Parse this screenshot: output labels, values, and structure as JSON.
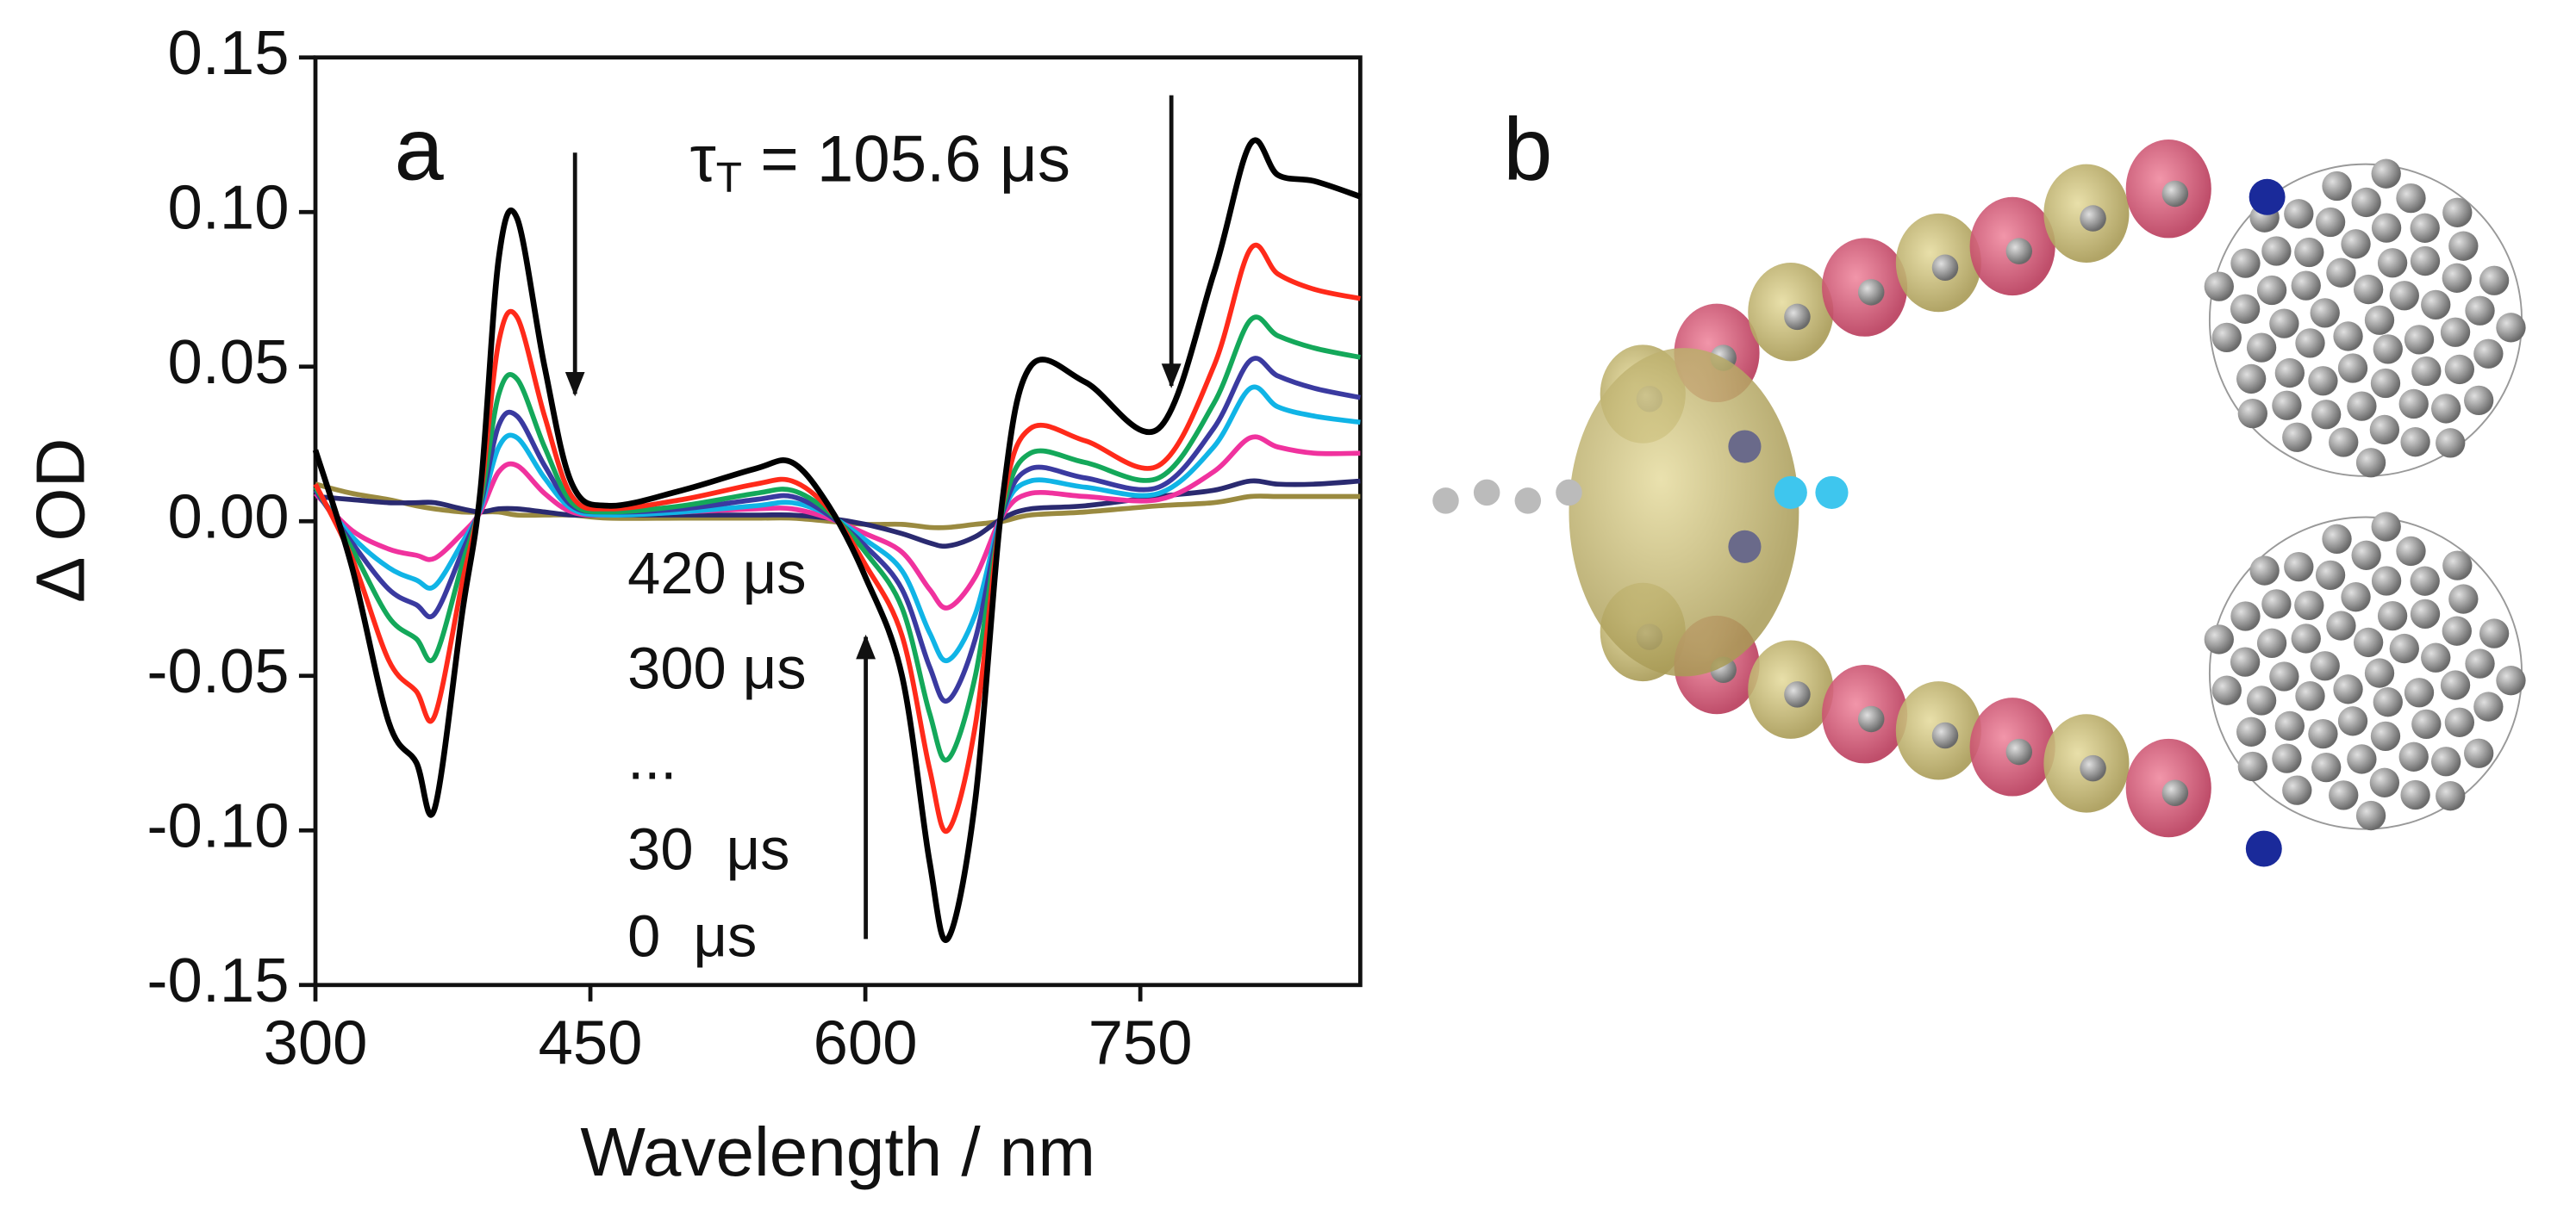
{
  "chart_data": {
    "type": "line",
    "panel_label": "a",
    "lifetime_label": [
      "τ",
      "T",
      " = 105.6 μs"
    ],
    "time_labels": [
      "420 μs",
      "300 μs",
      "...",
      "30  μs",
      "0  μs"
    ],
    "x_label": "Wavelength / nm",
    "y_label": "Δ OD",
    "xlim": [
      300,
      870
    ],
    "xticks": [
      300,
      450,
      600,
      750
    ],
    "ylim": [
      -0.15,
      0.15
    ],
    "yticks": [
      0.15,
      {
        "value": 0.1,
        "label": "0.10"
      },
      0.05,
      {
        "value": 0,
        "label": "0.00"
      },
      -0.05,
      {
        "value": -0.1,
        "label": "-0.10"
      },
      -0.15
    ],
    "grid": false,
    "x": [
      300,
      320,
      340,
      355,
      365,
      380,
      390,
      400,
      410,
      425,
      440,
      460,
      500,
      540,
      560,
      580,
      600,
      620,
      635,
      645,
      660,
      675,
      690,
      720,
      760,
      790,
      810,
      825,
      845,
      870
    ],
    "series": [
      {
        "color": "#000000",
        "values": [
          0.023,
          -0.015,
          -0.065,
          -0.078,
          -0.093,
          -0.03,
          0.01,
          0.085,
          0.098,
          0.05,
          0.012,
          0.005,
          0.01,
          0.017,
          0.019,
          0.005,
          -0.018,
          -0.05,
          -0.11,
          -0.135,
          -0.09,
          0.008,
          0.05,
          0.045,
          0.03,
          0.08,
          0.122,
          0.112,
          0.11,
          0.105
        ]
      },
      {
        "color": "#ff2a1a",
        "values": [
          0.012,
          -0.012,
          -0.045,
          -0.055,
          -0.063,
          -0.02,
          0.008,
          0.058,
          0.066,
          0.034,
          0.008,
          0.004,
          0.007,
          0.012,
          0.013,
          0.004,
          -0.014,
          -0.037,
          -0.08,
          -0.1,
          -0.066,
          0.006,
          0.03,
          0.026,
          0.018,
          0.05,
          0.088,
          0.08,
          0.075,
          0.072
        ]
      },
      {
        "color": "#14a85a",
        "values": [
          0.011,
          -0.009,
          -0.031,
          -0.038,
          -0.044,
          -0.014,
          0.006,
          0.041,
          0.046,
          0.024,
          0.006,
          0.003,
          0.005,
          0.009,
          0.01,
          0.003,
          -0.01,
          -0.028,
          -0.062,
          -0.077,
          -0.05,
          0.004,
          0.022,
          0.019,
          0.014,
          0.038,
          0.065,
          0.06,
          0.056,
          0.053
        ]
      },
      {
        "color": "#3a3aa0",
        "values": [
          0.01,
          -0.007,
          -0.022,
          -0.027,
          -0.03,
          -0.01,
          0.005,
          0.031,
          0.034,
          0.018,
          0.005,
          0.003,
          0.004,
          0.007,
          0.008,
          0.002,
          -0.008,
          -0.022,
          -0.047,
          -0.058,
          -0.038,
          0.003,
          0.017,
          0.014,
          0.011,
          0.03,
          0.052,
          0.047,
          0.043,
          0.04
        ]
      },
      {
        "color": "#10b4e6",
        "values": [
          0.01,
          -0.005,
          -0.015,
          -0.019,
          -0.021,
          -0.007,
          0.004,
          0.024,
          0.027,
          0.014,
          0.004,
          0.002,
          0.003,
          0.005,
          0.006,
          0.002,
          -0.006,
          -0.016,
          -0.036,
          -0.045,
          -0.03,
          0.003,
          0.013,
          0.011,
          0.009,
          0.024,
          0.043,
          0.037,
          0.034,
          0.032
        ]
      },
      {
        "color": "#f0329e",
        "values": [
          0.009,
          -0.003,
          -0.009,
          -0.011,
          -0.012,
          -0.004,
          0.003,
          0.016,
          0.018,
          0.009,
          0.003,
          0.002,
          0.003,
          0.004,
          0.004,
          0.001,
          -0.004,
          -0.01,
          -0.022,
          -0.028,
          -0.018,
          0.002,
          0.009,
          0.008,
          0.007,
          0.016,
          0.027,
          0.024,
          0.022,
          0.022
        ]
      },
      {
        "color": "#2a2a70",
        "values": [
          0.008,
          0.007,
          0.006,
          0.006,
          0.006,
          0.004,
          0.003,
          0.004,
          0.004,
          0.003,
          0.002,
          0.002,
          0.002,
          0.002,
          0.002,
          0.001,
          -0.001,
          -0.004,
          -0.007,
          -0.008,
          -0.005,
          0.001,
          0.004,
          0.005,
          0.008,
          0.01,
          0.013,
          0.012,
          0.012,
          0.013
        ]
      },
      {
        "color": "#9a8a40",
        "values": [
          0.012,
          0.009,
          0.007,
          0.005,
          0.004,
          0.003,
          0.003,
          0.003,
          0.002,
          0.002,
          0.002,
          0.001,
          0.001,
          0.001,
          0.001,
          0,
          -0.001,
          -0.001,
          -0.002,
          -0.002,
          -0.001,
          0,
          0.002,
          0.003,
          0.005,
          0.006,
          0.008,
          0.008,
          0.008,
          0.008
        ]
      }
    ]
  },
  "panel_b": {
    "label": "b"
  }
}
